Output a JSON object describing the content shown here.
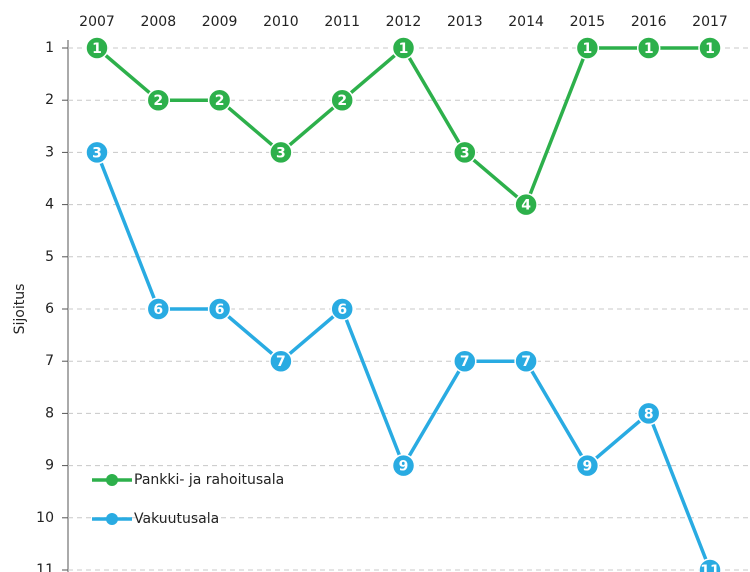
{
  "chart_data": {
    "type": "line",
    "categories": [
      "2007",
      "2008",
      "2009",
      "2010",
      "2011",
      "2012",
      "2013",
      "2014",
      "2015",
      "2016",
      "2017"
    ],
    "series": [
      {
        "name": "Pankki- ja rahoitusala",
        "color": "#2db04b",
        "values": [
          1,
          2,
          2,
          3,
          2,
          1,
          3,
          4,
          1,
          1,
          1
        ]
      },
      {
        "name": "Vakuutusala",
        "color": "#29abe2",
        "values": [
          3,
          6,
          6,
          7,
          6,
          9,
          7,
          7,
          9,
          8,
          11
        ]
      }
    ],
    "y_label": "Sijoitus",
    "ylim": [
      1,
      11
    ],
    "y_inverted": true,
    "yticks": [
      1,
      2,
      3,
      4,
      5,
      6,
      7,
      8,
      9,
      10,
      11
    ],
    "grid": true,
    "legend": "lower left"
  }
}
